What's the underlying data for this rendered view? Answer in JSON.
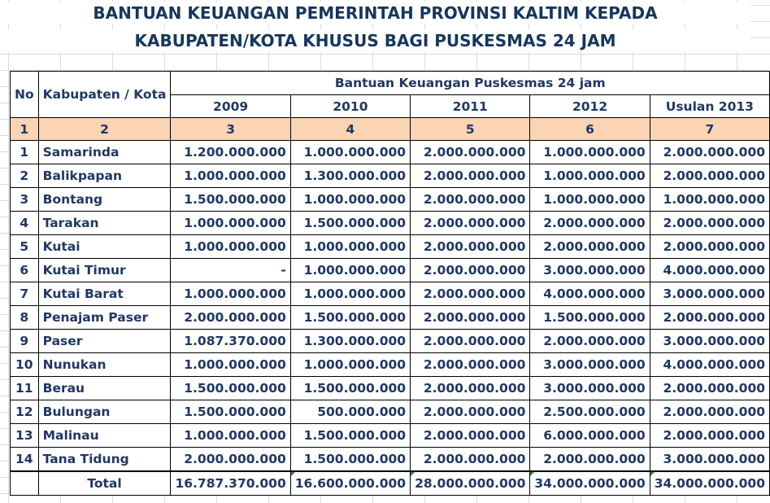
{
  "title": {
    "line1": "BANTUAN KEUANGAN PEMERINTAH PROVINSI KALTIM KEPADA",
    "line2": "KABUPATEN/KOTA KHUSUS BAGI PUSKESMAS 24 JAM"
  },
  "header": {
    "no": "No",
    "kabupaten": "Kabupaten / Kota",
    "group": "Bantuan Keuangan Puskesmas 24 jam",
    "years": [
      "2009",
      "2010",
      "2011",
      "2012",
      "Usulan 2013"
    ],
    "index": [
      "1",
      "2",
      "3",
      "4",
      "5",
      "6",
      "7"
    ]
  },
  "rows": [
    {
      "no": "1",
      "name": "Samarinda",
      "v": [
        "1.200.000.000",
        "1.000.000.000",
        "2.000.000.000",
        "1.000.000.000",
        "2.000.000.000"
      ]
    },
    {
      "no": "2",
      "name": "Balikpapan",
      "v": [
        "1.000.000.000",
        "1.300.000.000",
        "2.000.000.000",
        "1.000.000.000",
        "2.000.000.000"
      ]
    },
    {
      "no": "3",
      "name": "Bontang",
      "v": [
        "1.500.000.000",
        "1.000.000.000",
        "2.000.000.000",
        "1.000.000.000",
        "1.000.000.000"
      ]
    },
    {
      "no": "4",
      "name": "Tarakan",
      "v": [
        "1.000.000.000",
        "1.500.000.000",
        "2.000.000.000",
        "2.000.000.000",
        "2.000.000.000"
      ]
    },
    {
      "no": "5",
      "name": "Kutai",
      "v": [
        "1.000.000.000",
        "1.000.000.000",
        "2.000.000.000",
        "2.000.000.000",
        "2.000.000.000"
      ]
    },
    {
      "no": "6",
      "name": "Kutai Timur",
      "v": [
        "-",
        "1.000.000.000",
        "2.000.000.000",
        "3.000.000.000",
        "4.000.000.000"
      ]
    },
    {
      "no": "7",
      "name": "Kutai Barat",
      "v": [
        "1.000.000.000",
        "1.000.000.000",
        "2.000.000.000",
        "4.000.000.000",
        "3.000.000.000"
      ]
    },
    {
      "no": "8",
      "name": "Penajam Paser",
      "v": [
        "2.000.000.000",
        "1.500.000.000",
        "2.000.000.000",
        "1.500.000.000",
        "2.000.000.000"
      ]
    },
    {
      "no": "9",
      "name": "Paser",
      "v": [
        "1.087.370.000",
        "1.300.000.000",
        "2.000.000.000",
        "2.000.000.000",
        "3.000.000.000"
      ]
    },
    {
      "no": "10",
      "name": "Nunukan",
      "v": [
        "1.000.000.000",
        "1.000.000.000",
        "2.000.000.000",
        "3.000.000.000",
        "4.000.000.000"
      ]
    },
    {
      "no": "11",
      "name": "Berau",
      "v": [
        "1.500.000.000",
        "1.500.000.000",
        "2.000.000.000",
        "3.000.000.000",
        "2.000.000.000"
      ]
    },
    {
      "no": "12",
      "name": "Bulungan",
      "v": [
        "1.500.000.000",
        "500.000.000",
        "2.000.000.000",
        "2.500.000.000",
        "2.000.000.000"
      ]
    },
    {
      "no": "13",
      "name": "Malinau",
      "v": [
        "1.000.000.000",
        "1.500.000.000",
        "2.000.000.000",
        "6.000.000.000",
        "2.000.000.000"
      ]
    },
    {
      "no": "14",
      "name": "Tana Tidung",
      "v": [
        "2.000.000.000",
        "1.500.000.000",
        "2.000.000.000",
        "2.000.000.000",
        "3.000.000.000"
      ]
    }
  ],
  "total": {
    "label": "Total",
    "v": [
      "16.787.370.000",
      "16.600.000.000",
      "28.000.000.000",
      "34.000.000.000",
      "34.000.000.000"
    ]
  }
}
